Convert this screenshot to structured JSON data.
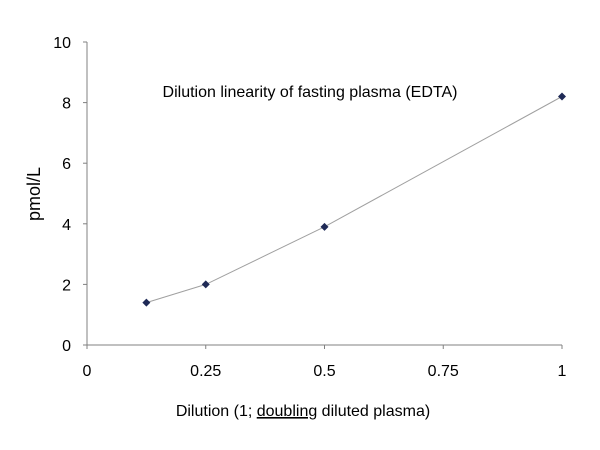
{
  "chart_data": {
    "type": "scatter",
    "title": "Dilution linearity of fasting plasma (EDTA)",
    "xlabel": {
      "prefix": "Dilution (1; ",
      "underlined": "doubling",
      "suffix": " diluted plasma)"
    },
    "ylabel": "pmol/L",
    "xlim": [
      0,
      1
    ],
    "ylim": [
      0,
      10
    ],
    "xticks": [
      "0",
      "0.25",
      "0.5",
      "0.75",
      "1"
    ],
    "yticks": [
      "0",
      "2",
      "4",
      "6",
      "8",
      "10"
    ],
    "grid": false,
    "legend": "none",
    "series": [
      {
        "x": [
          0.125,
          0.25,
          0.5,
          1
        ],
        "y": [
          1.4,
          2.0,
          3.9,
          8.2
        ],
        "marker": "diamond",
        "connected": true
      }
    ],
    "colors": {
      "marker": "#1f2a56",
      "line": "#a0a0a0",
      "axis": "#808080"
    }
  }
}
